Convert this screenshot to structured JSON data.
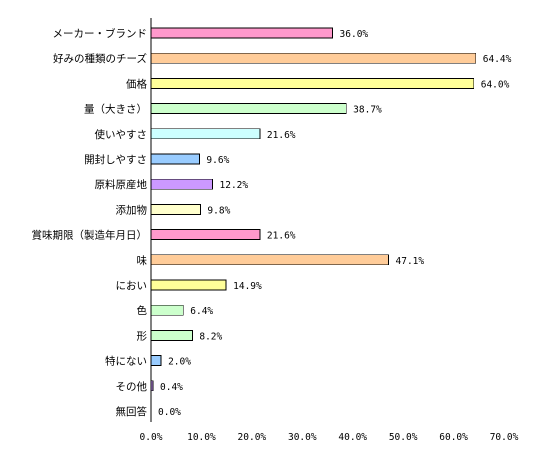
{
  "chart_data": {
    "type": "bar",
    "orientation": "horizontal",
    "categories": [
      "メーカー・ブランド",
      "好みの種類のチーズ",
      "価格",
      "量（大きさ）",
      "使いやすさ",
      "開封しやすさ",
      "原料原産地",
      "添加物",
      "賞味期限（製造年月日）",
      "味",
      "におい",
      "色",
      "形",
      "特にない",
      "その他",
      "無回答"
    ],
    "values": [
      36.0,
      64.4,
      64.0,
      38.7,
      21.6,
      9.6,
      12.2,
      9.8,
      21.6,
      47.1,
      14.9,
      6.4,
      8.2,
      2.0,
      0.4,
      0.0
    ],
    "value_labels": [
      "36.0%",
      "64.4%",
      "64.0%",
      "38.7%",
      "21.6%",
      "9.6%",
      "12.2%",
      "9.8%",
      "21.6%",
      "47.1%",
      "14.9%",
      "6.4%",
      "8.2%",
      "2.0%",
      "0.4%",
      "0.0%"
    ],
    "colors": [
      "#ff99cc",
      "#ffcc99",
      "#ffff99",
      "#ccffcc",
      "#ccffff",
      "#99ccff",
      "#cc99ff",
      "#ffffcc",
      "#ff99cc",
      "#ffcc99",
      "#ffff99",
      "#ccffcc",
      "#ccffcc",
      "#99ccff",
      "#cc99ff",
      "#ffffcc"
    ],
    "xlim": [
      0,
      70
    ],
    "xticks": [
      "0.0%",
      "10.0%",
      "20.0%",
      "30.0%",
      "40.0%",
      "50.0%",
      "60.0%",
      "70.0%"
    ],
    "title": "",
    "xlabel": "",
    "ylabel": "",
    "grid": false,
    "legend": "none"
  }
}
